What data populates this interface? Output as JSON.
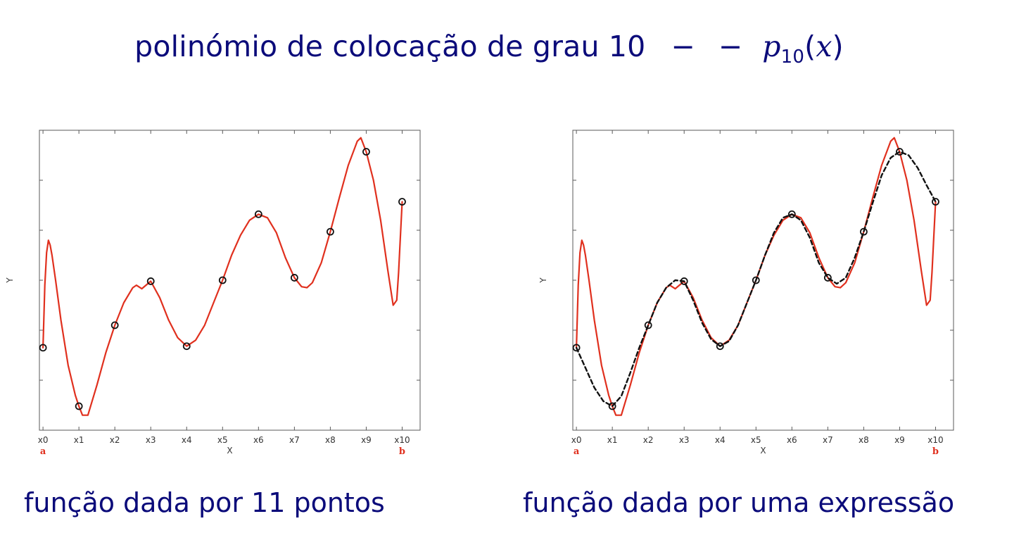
{
  "title": {
    "text": "polinómio de colocação de grau 10",
    "dash": "− −",
    "p": "p",
    "sub": "10",
    "paren_open": "(",
    "var": "x",
    "paren_close": ")"
  },
  "captions": {
    "left": "função dada por 11 pontos",
    "right": "função dada por uma expressão"
  },
  "colors": {
    "title": "#0b0b7a",
    "polynomial": "#e0301e",
    "function": "#111111",
    "endpoint_label": "#e0301e"
  },
  "chart_data": [
    {
      "type": "line",
      "xlabel": "X",
      "ylabel": "Y",
      "x_tick_labels": [
        "x0",
        "x1",
        "x2",
        "x3",
        "x4",
        "x5",
        "x6",
        "x7",
        "x8",
        "x9",
        "x10"
      ],
      "endpoint_labels": {
        "a": "a",
        "b": "b"
      },
      "xlim": [
        -0.1,
        10.5
      ],
      "ylim": [
        0,
        6
      ],
      "y_tick_values": [
        1,
        2,
        3,
        4,
        5
      ],
      "grid": false,
      "points": {
        "x": [
          0,
          1,
          2,
          3,
          4,
          5,
          6,
          7,
          8,
          9,
          10
        ],
        "y": [
          1.65,
          0.48,
          2.1,
          2.98,
          1.68,
          3.0,
          4.32,
          3.05,
          3.97,
          5.57,
          4.57
        ]
      },
      "series": [
        {
          "style": "solid",
          "color": "#e0301e",
          "x": [
            0,
            0.05,
            0.1,
            0.15,
            0.2,
            0.25,
            0.35,
            0.5,
            0.7,
            0.9,
            1.0,
            1.1,
            1.25,
            1.5,
            1.75,
            2.0,
            2.25,
            2.5,
            2.6,
            2.75,
            3.0,
            3.25,
            3.5,
            3.75,
            4.0,
            4.25,
            4.5,
            4.75,
            5.0,
            5.25,
            5.5,
            5.75,
            6.0,
            6.25,
            6.5,
            6.75,
            7.0,
            7.2,
            7.35,
            7.5,
            7.75,
            8.0,
            8.25,
            8.5,
            8.75,
            8.85,
            9.0,
            9.2,
            9.4,
            9.6,
            9.75,
            9.85,
            9.9,
            9.95,
            10.0
          ],
          "y": [
            1.65,
            2.9,
            3.55,
            3.8,
            3.7,
            3.5,
            3.0,
            2.2,
            1.3,
            0.7,
            0.48,
            0.3,
            0.3,
            0.9,
            1.55,
            2.1,
            2.55,
            2.85,
            2.9,
            2.83,
            2.98,
            2.65,
            2.2,
            1.85,
            1.68,
            1.8,
            2.1,
            2.55,
            3.0,
            3.5,
            3.9,
            4.2,
            4.32,
            4.25,
            3.95,
            3.45,
            3.05,
            2.87,
            2.85,
            2.95,
            3.35,
            3.97,
            4.65,
            5.3,
            5.78,
            5.85,
            5.57,
            5.0,
            4.2,
            3.2,
            2.5,
            2.6,
            3.15,
            3.85,
            4.57
          ]
        }
      ]
    },
    {
      "type": "line",
      "xlabel": "X",
      "ylabel": "Y",
      "x_tick_labels": [
        "x0",
        "x1",
        "x2",
        "x3",
        "x4",
        "x5",
        "x6",
        "x7",
        "x8",
        "x9",
        "x10"
      ],
      "endpoint_labels": {
        "a": "a",
        "b": "b"
      },
      "xlim": [
        -0.1,
        10.5
      ],
      "ylim": [
        0,
        6
      ],
      "y_tick_values": [
        1,
        2,
        3,
        4,
        5
      ],
      "grid": false,
      "points": {
        "x": [
          0,
          1,
          2,
          3,
          4,
          5,
          6,
          7,
          8,
          9,
          10
        ],
        "y": [
          1.65,
          0.48,
          2.1,
          2.98,
          1.68,
          3.0,
          4.32,
          3.05,
          3.97,
          5.57,
          4.57
        ]
      },
      "series": [
        {
          "style": "solid",
          "color": "#e0301e",
          "x": [
            0,
            0.05,
            0.1,
            0.15,
            0.2,
            0.25,
            0.35,
            0.5,
            0.7,
            0.9,
            1.0,
            1.1,
            1.25,
            1.5,
            1.75,
            2.0,
            2.25,
            2.5,
            2.6,
            2.75,
            3.0,
            3.25,
            3.5,
            3.75,
            4.0,
            4.25,
            4.5,
            4.75,
            5.0,
            5.25,
            5.5,
            5.75,
            6.0,
            6.25,
            6.5,
            6.75,
            7.0,
            7.2,
            7.35,
            7.5,
            7.75,
            8.0,
            8.25,
            8.5,
            8.75,
            8.85,
            9.0,
            9.2,
            9.4,
            9.6,
            9.75,
            9.85,
            9.9,
            9.95,
            10.0
          ],
          "y": [
            1.65,
            2.9,
            3.55,
            3.8,
            3.7,
            3.5,
            3.0,
            2.2,
            1.3,
            0.7,
            0.48,
            0.3,
            0.3,
            0.9,
            1.55,
            2.1,
            2.55,
            2.85,
            2.9,
            2.83,
            2.98,
            2.65,
            2.2,
            1.85,
            1.68,
            1.8,
            2.1,
            2.55,
            3.0,
            3.5,
            3.9,
            4.2,
            4.32,
            4.25,
            3.95,
            3.45,
            3.05,
            2.87,
            2.85,
            2.95,
            3.35,
            3.97,
            4.65,
            5.3,
            5.78,
            5.85,
            5.57,
            5.0,
            4.2,
            3.2,
            2.5,
            2.6,
            3.15,
            3.85,
            4.57
          ]
        },
        {
          "style": "dashed",
          "color": "#111111",
          "x": [
            0,
            0.25,
            0.5,
            0.75,
            1.0,
            1.25,
            1.5,
            1.75,
            2.0,
            2.25,
            2.5,
            2.75,
            3.0,
            3.25,
            3.5,
            3.75,
            4.0,
            4.25,
            4.5,
            4.75,
            5.0,
            5.25,
            5.5,
            5.75,
            6.0,
            6.25,
            6.5,
            6.75,
            7.0,
            7.25,
            7.5,
            7.75,
            8.0,
            8.25,
            8.5,
            8.75,
            9.0,
            9.25,
            9.5,
            9.75,
            10.0
          ],
          "y": [
            1.65,
            1.25,
            0.85,
            0.58,
            0.48,
            0.68,
            1.15,
            1.65,
            2.1,
            2.55,
            2.85,
            3.0,
            2.98,
            2.6,
            2.15,
            1.82,
            1.68,
            1.78,
            2.1,
            2.55,
            3.0,
            3.5,
            3.95,
            4.25,
            4.32,
            4.2,
            3.85,
            3.35,
            3.05,
            2.93,
            3.05,
            3.45,
            3.97,
            4.55,
            5.1,
            5.45,
            5.57,
            5.5,
            5.25,
            4.9,
            4.57
          ]
        }
      ]
    }
  ]
}
